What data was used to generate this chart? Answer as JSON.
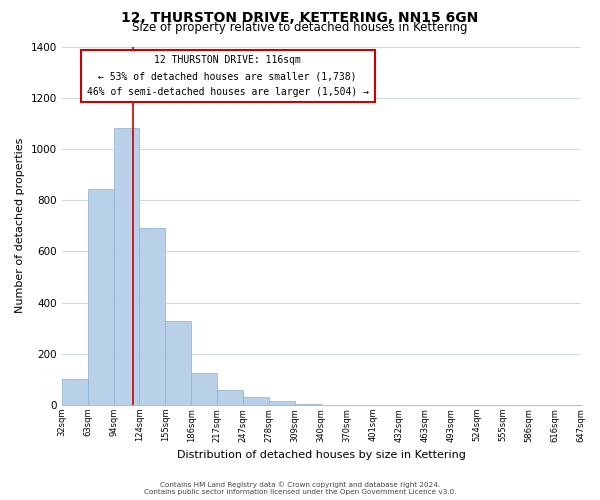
{
  "title": "12, THURSTON DRIVE, KETTERING, NN15 6GN",
  "subtitle": "Size of property relative to detached houses in Kettering",
  "xlabel": "Distribution of detached houses by size in Kettering",
  "ylabel": "Number of detached properties",
  "bar_color": "#b8d0e8",
  "bar_edge_color": "#8ab0d0",
  "bin_labels": [
    "32sqm",
    "63sqm",
    "94sqm",
    "124sqm",
    "155sqm",
    "186sqm",
    "217sqm",
    "247sqm",
    "278sqm",
    "309sqm",
    "340sqm",
    "370sqm",
    "401sqm",
    "432sqm",
    "463sqm",
    "493sqm",
    "524sqm",
    "555sqm",
    "586sqm",
    "616sqm",
    "647sqm"
  ],
  "values": [
    100,
    845,
    1080,
    690,
    330,
    125,
    60,
    32,
    15,
    5,
    2,
    0,
    0,
    0,
    0,
    0,
    0,
    0,
    0,
    0
  ],
  "ylim": [
    0,
    1400
  ],
  "yticks": [
    0,
    200,
    400,
    600,
    800,
    1000,
    1200,
    1400
  ],
  "vline_x_index": 2.733,
  "vline_color": "#cc0000",
  "annotation_box_title": "12 THURSTON DRIVE: 116sqm",
  "annotation_line1": "← 53% of detached houses are smaller (1,738)",
  "annotation_line2": "46% of semi-detached houses are larger (1,504) →",
  "annotation_box_edge": "#cc0000",
  "footnote1": "Contains HM Land Registry data © Crown copyright and database right 2024.",
  "footnote2": "Contains public sector information licensed under the Open Government Licence v3.0.",
  "background_color": "#ffffff",
  "grid_color": "#c8d8e8",
  "fig_width": 6.0,
  "fig_height": 5.0,
  "dpi": 100
}
